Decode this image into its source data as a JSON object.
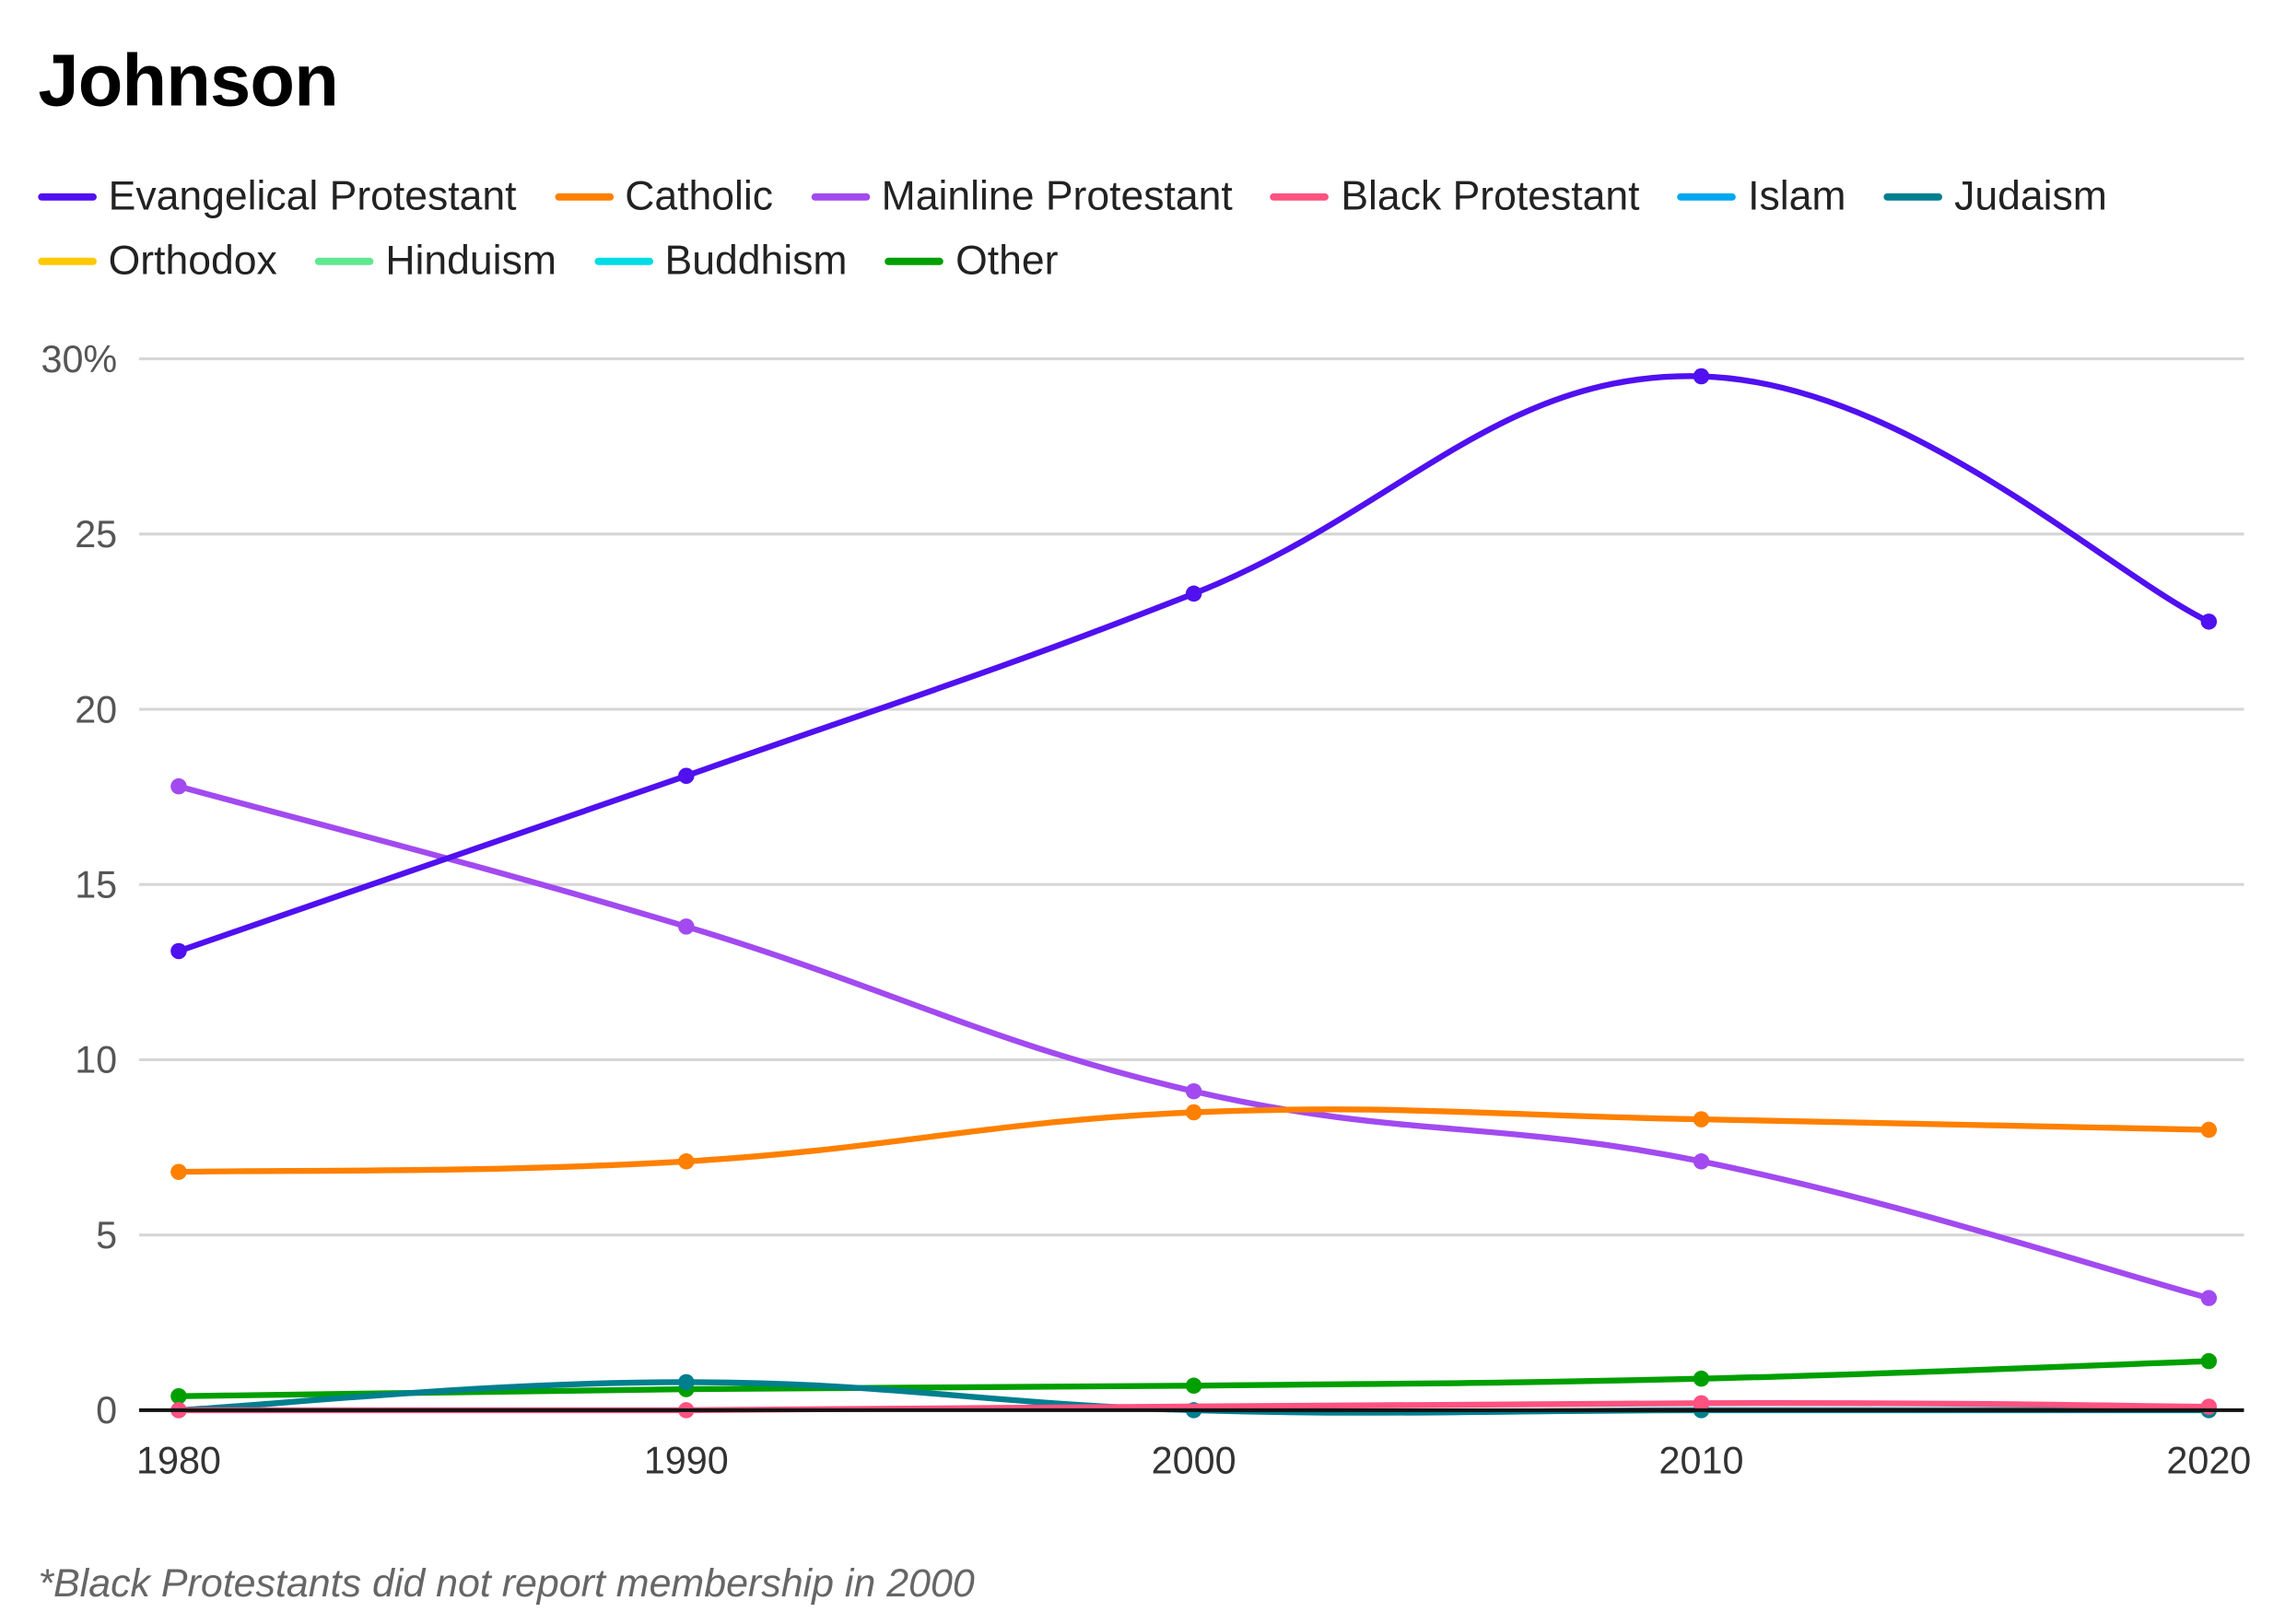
{
  "chart_data": {
    "type": "line",
    "title": "Johnson",
    "x": [
      1980,
      1990,
      2000,
      2010,
      2020
    ],
    "xlabel": "",
    "ylabel": "",
    "ylim": [
      0,
      30
    ],
    "yticks": [
      0,
      5,
      10,
      15,
      20,
      25,
      30
    ],
    "ytick_labels": [
      "0",
      "5",
      "10",
      "15",
      "20",
      "25",
      "30%"
    ],
    "xtick_labels": [
      "1980",
      "1990",
      "2000",
      "2010",
      "2020"
    ],
    "grid": true,
    "legend_position": "top",
    "series": [
      {
        "name": "Evangelical Protestant",
        "color": "#5010f0",
        "values": [
          13.1,
          18.1,
          23.3,
          29.5,
          22.5
        ]
      },
      {
        "name": "Catholic",
        "color": "#ff8000",
        "values": [
          6.8,
          7.1,
          8.5,
          8.3,
          8.0
        ]
      },
      {
        "name": "Mainline Protestant",
        "color": "#a24af0",
        "values": [
          17.8,
          13.8,
          9.1,
          7.1,
          3.2
        ]
      },
      {
        "name": "Black Protestant",
        "color": "#ff5280",
        "values": [
          0,
          0,
          null,
          0.2,
          0.1
        ]
      },
      {
        "name": "Islam",
        "color": "#00a8f0",
        "values": [
          null,
          null,
          null,
          null,
          null
        ]
      },
      {
        "name": "Judaism",
        "color": "#007f8f",
        "values": [
          0,
          0.8,
          0,
          0,
          0
        ]
      },
      {
        "name": "Orthodox",
        "color": "#ffc800",
        "values": [
          null,
          null,
          null,
          null,
          null
        ]
      },
      {
        "name": "Hinduism",
        "color": "#60e890",
        "values": [
          null,
          null,
          null,
          null,
          null
        ]
      },
      {
        "name": "Buddhism",
        "color": "#00dce6",
        "values": [
          null,
          null,
          null,
          null,
          null
        ]
      },
      {
        "name": "Other",
        "color": "#009f00",
        "values": [
          0.4,
          0.6,
          0.7,
          0.9,
          1.4
        ]
      }
    ],
    "footnote": "*Black Protestants did not report membership in 2000"
  }
}
